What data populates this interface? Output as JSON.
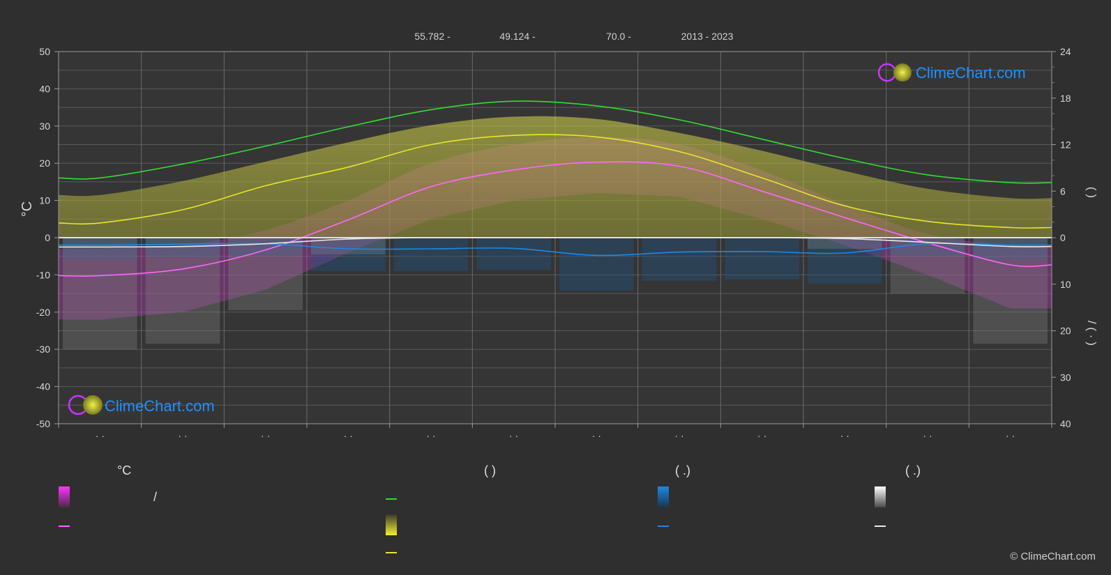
{
  "header": {
    "lat": "55.782 -",
    "lon": "49.124 -",
    "elev": "70.0 -",
    "years": "2013 - 2023"
  },
  "brand": {
    "name": "ClimeChart.com",
    "copyright": "© ClimeChart.com"
  },
  "colors": {
    "background": "#2f2f2f",
    "daylight": "#33dd33",
    "sunshine": "#e6e62a",
    "temperature": "#ff66ff",
    "rain": "#1e88e5",
    "snow": "#e8e8e8",
    "brand": "#1e90ff"
  },
  "chart_data": {
    "type": "line",
    "title": "",
    "xlabel": "",
    "months": [
      "· ·",
      "· ·",
      "· ·",
      "· ·",
      "· ·",
      "· ·",
      "· ·",
      "· ·",
      "· ·",
      "· ·",
      "· ·",
      "· ·"
    ],
    "left_axis": {
      "label": "°C",
      "ylim": [
        -50,
        50
      ],
      "ticks": [
        "50",
        "40",
        "30",
        "20",
        "10",
        "0",
        "-10",
        "-20",
        "-30",
        "-40",
        "-50"
      ]
    },
    "right_axis_top": {
      "label": "(   )",
      "ylim": [
        0,
        24
      ],
      "ticks": [
        "24",
        "18",
        "12",
        "6",
        "0"
      ]
    },
    "right_axis_bottom": {
      "label": "/    (  ·  )",
      "ylim": [
        0,
        40
      ],
      "ticks": [
        "10",
        "20",
        "30",
        "40"
      ]
    },
    "series": [
      {
        "key": "daylight",
        "axis": "right_top",
        "values": [
          7.7,
          9.5,
          11.8,
          14.3,
          16.5,
          17.6,
          17.0,
          15.2,
          12.7,
          10.2,
          8.1,
          7.1
        ]
      },
      {
        "key": "sunshine_hours",
        "axis": "right_top",
        "values": [
          1.9,
          3.6,
          6.7,
          9.1,
          12.0,
          13.2,
          13.0,
          11.1,
          7.7,
          4.1,
          2.1,
          1.3
        ]
      },
      {
        "key": "mean_temperature",
        "axis": "left",
        "values": [
          -10.2,
          -8.4,
          -3.3,
          4.8,
          13.7,
          18.2,
          20.3,
          19.2,
          12.5,
          5.4,
          -1.4,
          -7.3
        ]
      },
      {
        "key": "rain",
        "axis": "right_bottom",
        "values": [
          1.6,
          1.4,
          1.3,
          2.4,
          2.4,
          2.3,
          3.8,
          3.1,
          3.0,
          3.3,
          1.3,
          1.6
        ]
      },
      {
        "key": "snow",
        "axis": "right_bottom",
        "values": [
          2.0,
          1.9,
          1.3,
          0.3,
          0.0,
          0.0,
          0.0,
          0.0,
          0.0,
          0.2,
          1.0,
          1.9
        ]
      }
    ],
    "bands": {
      "temperature_min": [
        -22,
        -20,
        -14,
        -4,
        5,
        10,
        12,
        11,
        5,
        -2,
        -10,
        -19
      ],
      "temperature_max": [
        -3,
        -2,
        2,
        10,
        20,
        25,
        27,
        25,
        18,
        9,
        1,
        -2
      ],
      "sunshine_upper": [
        5.5,
        7.3,
        9.8,
        12.3,
        14.5,
        15.6,
        15.3,
        13.5,
        11.2,
        8.6,
        6.3,
        5.1
      ]
    },
    "grid": true
  },
  "legend": {
    "col1_head": "°C",
    "col1_item1": "/",
    "col2_head": "(          )",
    "col3_head": "(   .)",
    "col4_head": "(   .)"
  }
}
